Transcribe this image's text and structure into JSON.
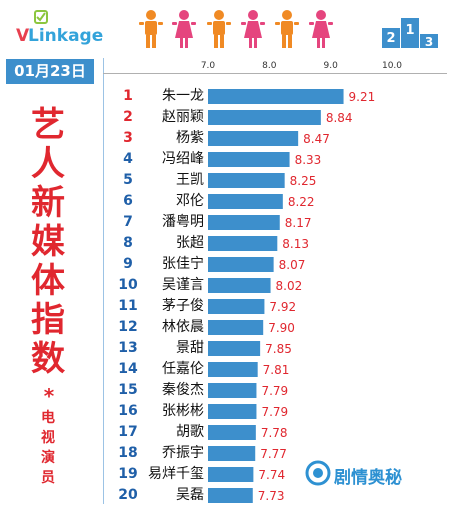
{
  "brand": {
    "logo_v": "V",
    "logo_rest": "Linkage"
  },
  "date": "01月23日",
  "side_title": [
    "艺",
    "人",
    "新",
    "媒",
    "体",
    "指",
    "数"
  ],
  "side_dot": "*",
  "side_subtitle": [
    "电",
    "视",
    "演",
    "员"
  ],
  "watermark": "剧情奥秘",
  "colors": {
    "bar": "#3d8fcc",
    "value_text": "#e0272f",
    "rank_top": "#e0272f",
    "rank_rest": "#1f5fa8",
    "person_orange": "#f08a24",
    "person_pink": "#e5457e",
    "podium": "#3d8fcc"
  },
  "icons": [
    "vlinkage-logo-icon",
    "person-icon",
    "podium-icon",
    "brand-logo-icon"
  ],
  "chart_data": {
    "type": "bar",
    "orientation": "horizontal",
    "title": "",
    "xlim": [
      7.0,
      10.0
    ],
    "ticks": [
      "7.0",
      "8.0",
      "9.0",
      "10.0"
    ],
    "grid": false,
    "categories": [
      "朱一龙",
      "赵丽颖",
      "杨紫",
      "冯绍峰",
      "王凯",
      "邓伦",
      "潘粤明",
      "张超",
      "张佳宁",
      "吴谨言",
      "茅子俊",
      "林依晨",
      "景甜",
      "任嘉伦",
      "秦俊杰",
      "张彬彬",
      "胡歌",
      "乔振宇",
      "易烊千玺",
      "吴磊"
    ],
    "ranks": [
      "1",
      "2",
      "3",
      "4",
      "5",
      "6",
      "7",
      "8",
      "9",
      "10",
      "11",
      "12",
      "13",
      "14",
      "15",
      "16",
      "17",
      "18",
      "19",
      "20"
    ],
    "values": [
      9.21,
      8.84,
      8.47,
      8.33,
      8.25,
      8.22,
      8.17,
      8.13,
      8.07,
      8.02,
      7.92,
      7.9,
      7.85,
      7.81,
      7.79,
      7.79,
      7.78,
      7.77,
      7.74,
      7.73
    ],
    "value_labels": [
      "9.21",
      "8.84",
      "8.47",
      "8.33",
      "8.25",
      "8.22",
      "8.17",
      "8.13",
      "8.07",
      "8.02",
      "7.92",
      "7.90",
      "7.85",
      "7.81",
      "7.79",
      "7.79",
      "7.78",
      "7.77",
      "7.74",
      "7.73"
    ]
  }
}
